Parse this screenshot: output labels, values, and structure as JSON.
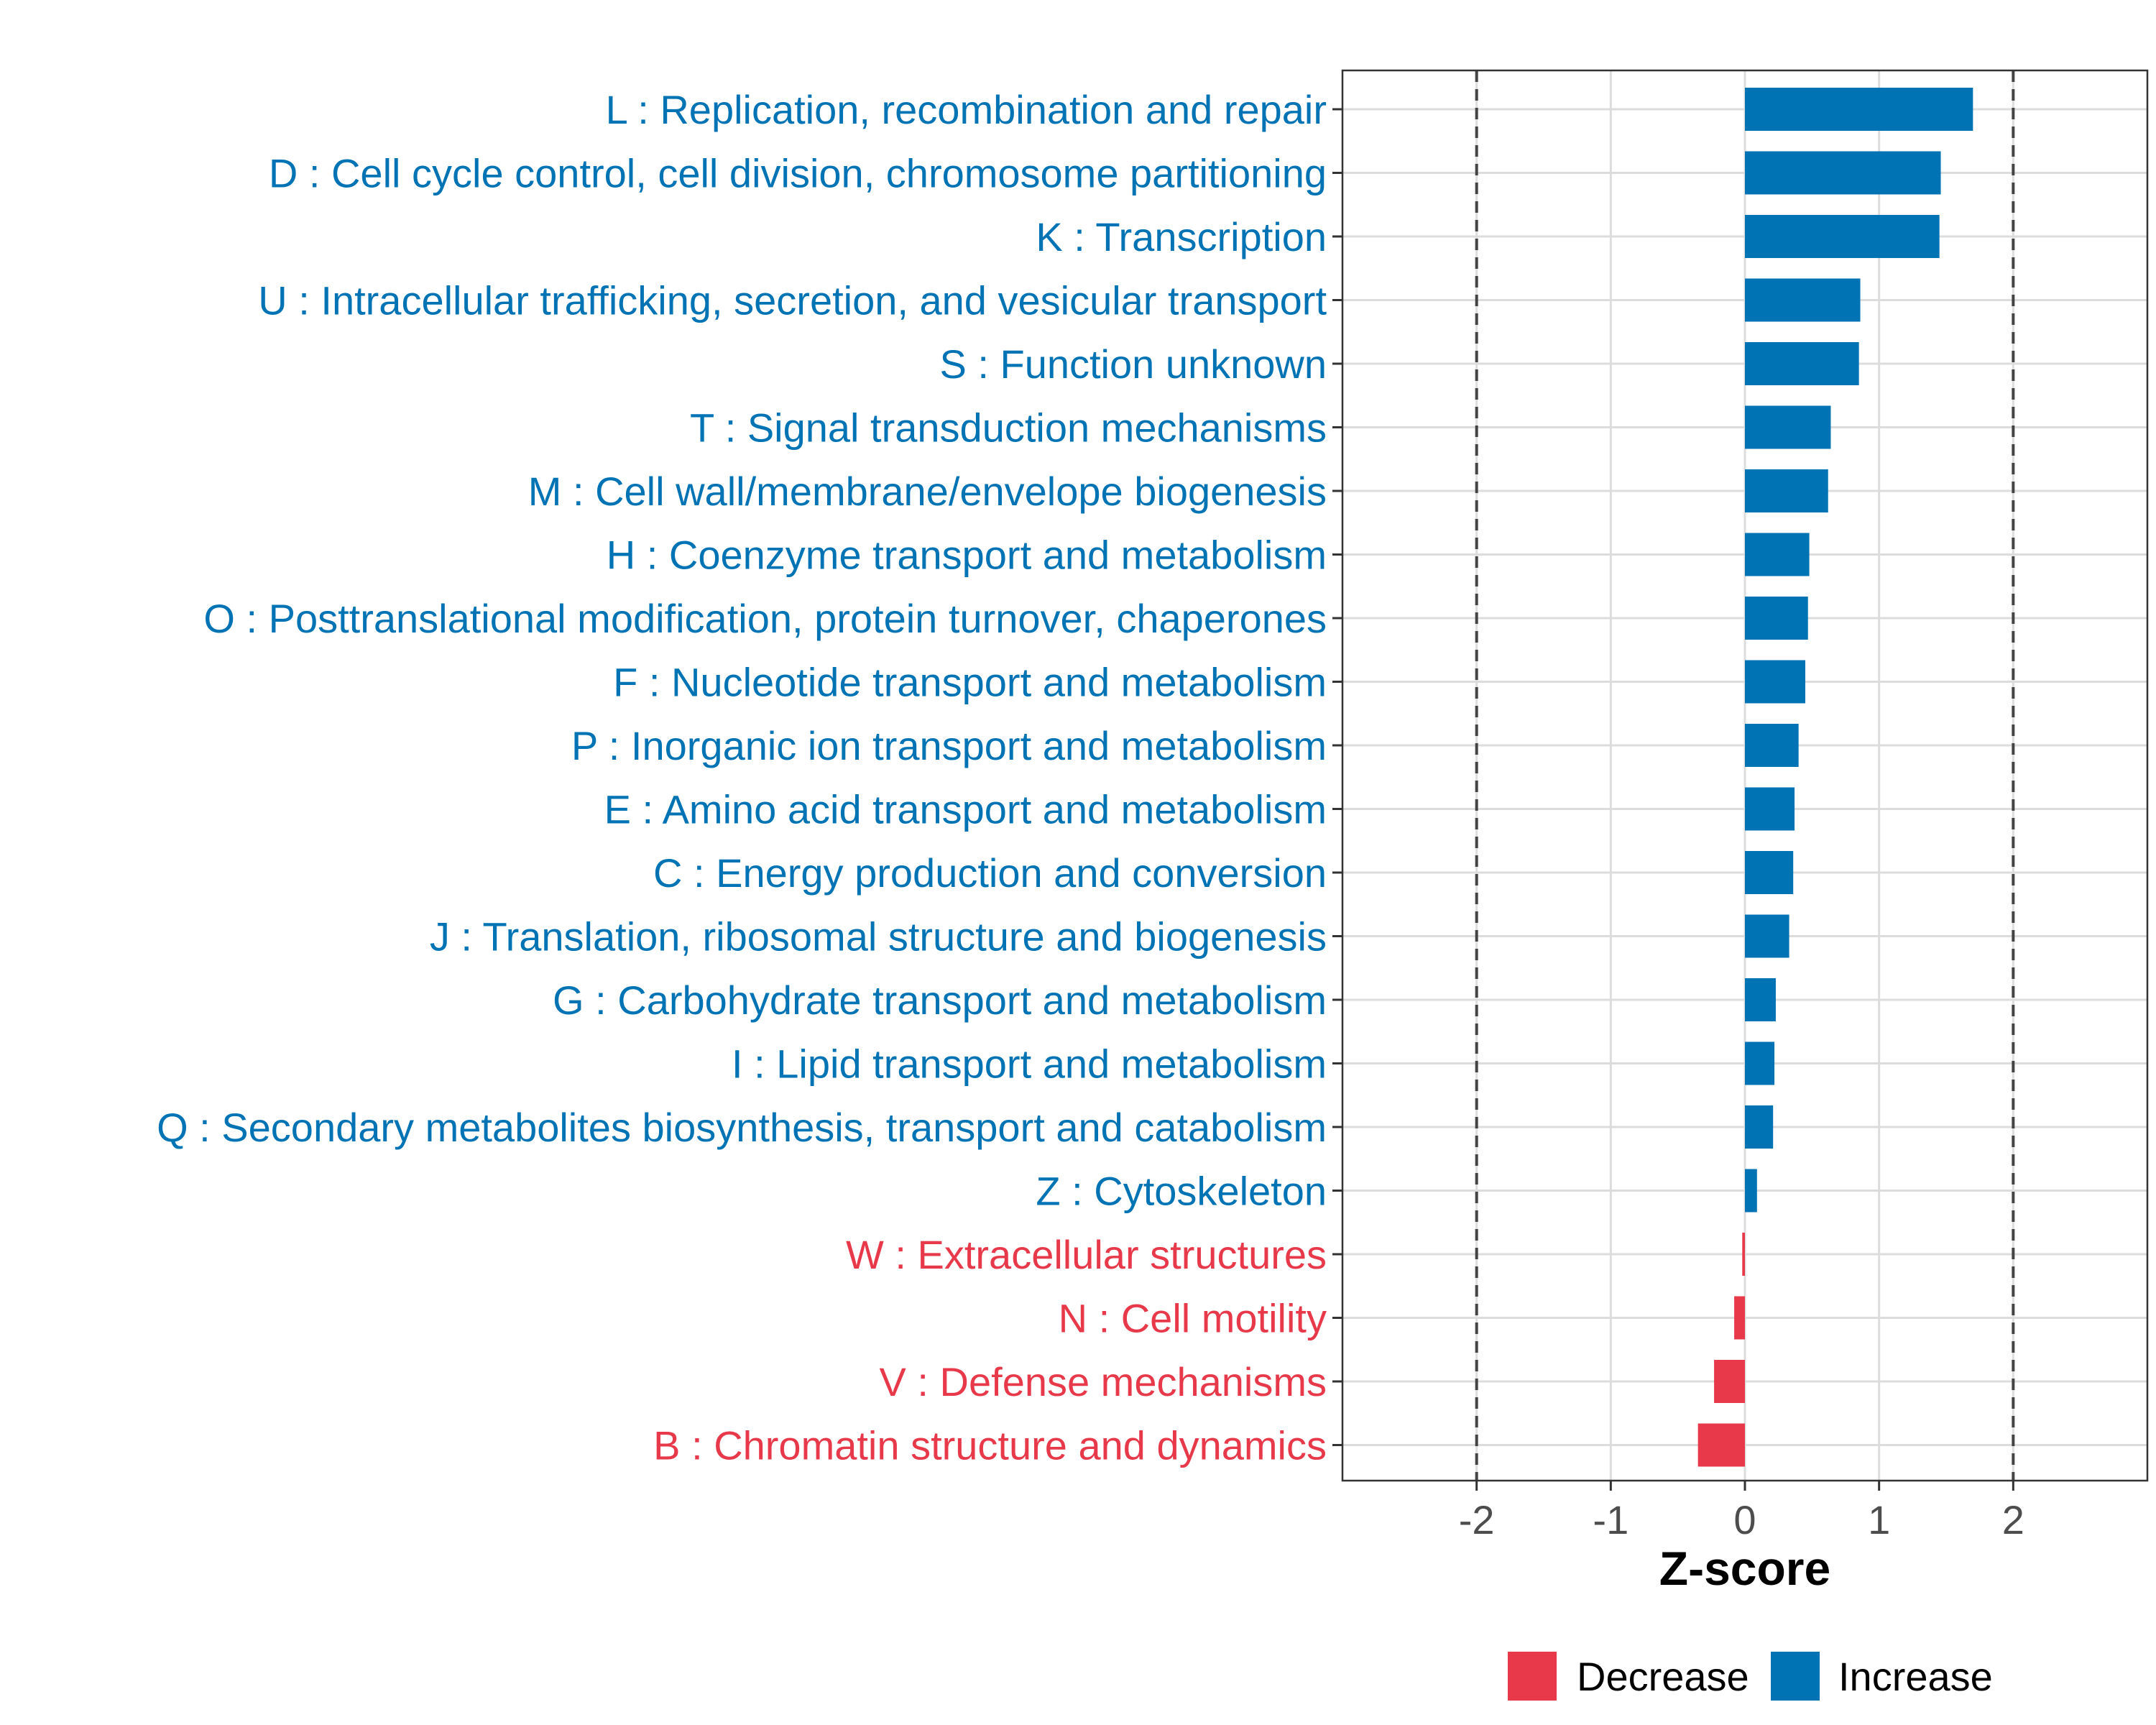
{
  "chart_data": {
    "type": "bar",
    "orientation": "horizontal",
    "title": "",
    "xlabel": "Z-score",
    "ylabel": "",
    "xlim": [
      -3,
      3
    ],
    "xticks": [
      -2,
      -1,
      0,
      1,
      2
    ],
    "xtick_labels": [
      "-2",
      "-1",
      "0",
      "1",
      "2"
    ],
    "reference_lines": [
      -2,
      2
    ],
    "grid": true,
    "legend_position": "bottom",
    "legend": [
      {
        "name": "Decrease",
        "color": "#E8394A"
      },
      {
        "name": "Increase",
        "color": "#0073B5"
      }
    ],
    "categories": [
      "L : Replication, recombination and repair",
      "D : Cell cycle control, cell division, chromosome partitioning",
      "K : Transcription",
      "U : Intracellular trafficking, secretion, and vesicular transport",
      "S : Function unknown",
      "T : Signal transduction mechanisms",
      "M : Cell wall/membrane/envelope biogenesis",
      "H : Coenzyme transport and metabolism",
      "O : Posttranslational modification, protein turnover, chaperones",
      "F : Nucleotide transport and metabolism",
      "P : Inorganic ion transport and metabolism",
      "E : Amino acid transport and metabolism",
      "C : Energy production and conversion",
      "J : Translation, ribosomal structure and biogenesis",
      "G : Carbohydrate transport and metabolism",
      "I : Lipid transport and metabolism",
      "Q : Secondary metabolites biosynthesis, transport and catabolism",
      "Z : Cytoskeleton",
      "W : Extracellular structures",
      "N : Cell motility",
      "V : Defense mechanisms",
      "B : Chromatin structure and dynamics"
    ],
    "values": [
      1.7,
      1.46,
      1.45,
      0.86,
      0.85,
      0.64,
      0.62,
      0.48,
      0.47,
      0.45,
      0.4,
      0.37,
      0.36,
      0.33,
      0.23,
      0.22,
      0.21,
      0.09,
      -0.02,
      -0.08,
      -0.23,
      -0.35
    ],
    "direction": [
      "Increase",
      "Increase",
      "Increase",
      "Increase",
      "Increase",
      "Increase",
      "Increase",
      "Increase",
      "Increase",
      "Increase",
      "Increase",
      "Increase",
      "Increase",
      "Increase",
      "Increase",
      "Increase",
      "Increase",
      "Increase",
      "Decrease",
      "Decrease",
      "Decrease",
      "Decrease"
    ]
  }
}
